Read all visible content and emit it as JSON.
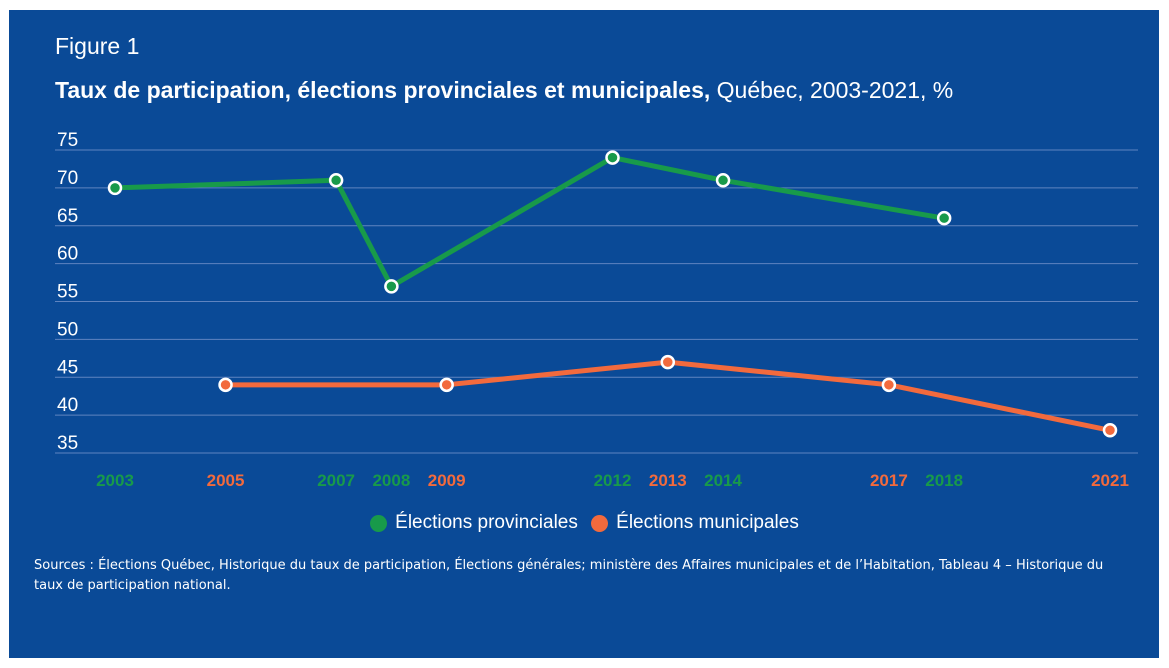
{
  "figure_label": "Figure 1",
  "title_bold": "Taux de participation, élections provinciales et municipales,",
  "title_rest": " Québec, 2003-2021, %",
  "colors": {
    "background": "#0a4a97",
    "provinciales": "#189a4a",
    "municipales": "#f26a3d",
    "grid": "#5f84c0",
    "text": "#ffffff"
  },
  "chart_data": {
    "type": "line",
    "title": "Taux de participation, élections provinciales et municipales, Québec, 2003-2021, %",
    "ylim": [
      35,
      75
    ],
    "yticks": [
      75,
      70,
      65,
      60,
      55,
      50,
      45,
      40,
      35
    ],
    "xlim": [
      2003,
      2021
    ],
    "grid": true,
    "legend_position": "bottom",
    "series": [
      {
        "name": "Élections provinciales",
        "color": "#189a4a",
        "x": [
          2003,
          2007,
          2008,
          2012,
          2014,
          2018
        ],
        "values": [
          70,
          71,
          57,
          74,
          71,
          66
        ]
      },
      {
        "name": "Élections municipales",
        "color": "#f26a3d",
        "x": [
          2005,
          2009,
          2013,
          2017,
          2021
        ],
        "values": [
          44,
          44,
          47,
          44,
          38
        ]
      }
    ]
  },
  "sources": "Sources : Élections Québec, Historique du taux de participation, Élections générales; ministère des Affaires municipales et de l’Habitation, Tableau 4 – Historique du taux de participation national."
}
